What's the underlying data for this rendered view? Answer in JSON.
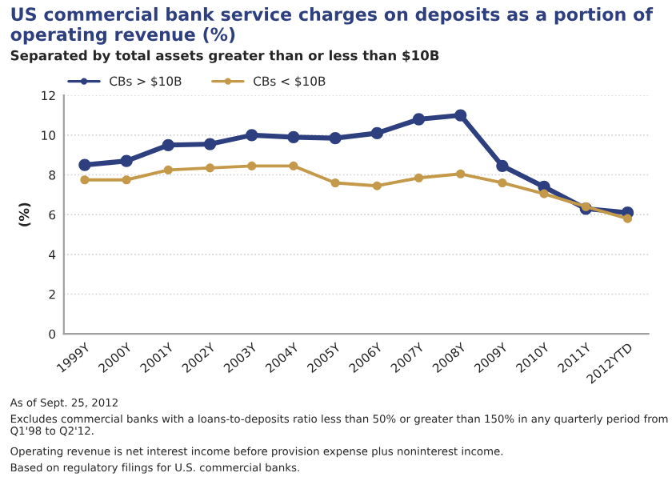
{
  "chart_data": {
    "type": "line",
    "title": "US commercial bank service charges on deposits as a portion of operating revenue (%)",
    "subtitle": "Separated by total assets greater than or less than $10B",
    "ylabel": "(%)",
    "categories": [
      "1999Y",
      "2000Y",
      "2001Y",
      "2002Y",
      "2003Y",
      "2004Y",
      "2005Y",
      "2006Y",
      "2007Y",
      "2008Y",
      "2009Y",
      "2010Y",
      "2011Y",
      "2012YTD"
    ],
    "series": [
      {
        "name": "CBs > $10B",
        "color": "#2e3f7f",
        "values": [
          8.5,
          8.7,
          9.5,
          9.55,
          10.0,
          9.9,
          9.85,
          10.1,
          10.8,
          11.0,
          8.45,
          7.4,
          6.3,
          6.1
        ]
      },
      {
        "name": "CBs < $10B",
        "color": "#c49a4a",
        "values": [
          7.75,
          7.75,
          8.25,
          8.35,
          8.45,
          8.45,
          7.6,
          7.45,
          7.85,
          8.05,
          7.6,
          7.05,
          6.4,
          5.8
        ]
      }
    ],
    "ylim": [
      0,
      12
    ],
    "yticks": [
      0,
      2,
      4,
      6,
      8,
      10,
      12
    ],
    "grid": "y",
    "legend": "top",
    "marker": "circle",
    "line_style": "solid",
    "annotations": [
      "As of Sept. 25, 2012",
      "Excludes commercial banks with a loans-to-deposits ratio less than 50% or greater than 150% in any quarterly period from Q1'98 to Q2'12.",
      "Operating revenue is net interest income before provision expense plus noninterest income.",
      "Based on regulatory filings for U.S. commercial banks."
    ]
  }
}
